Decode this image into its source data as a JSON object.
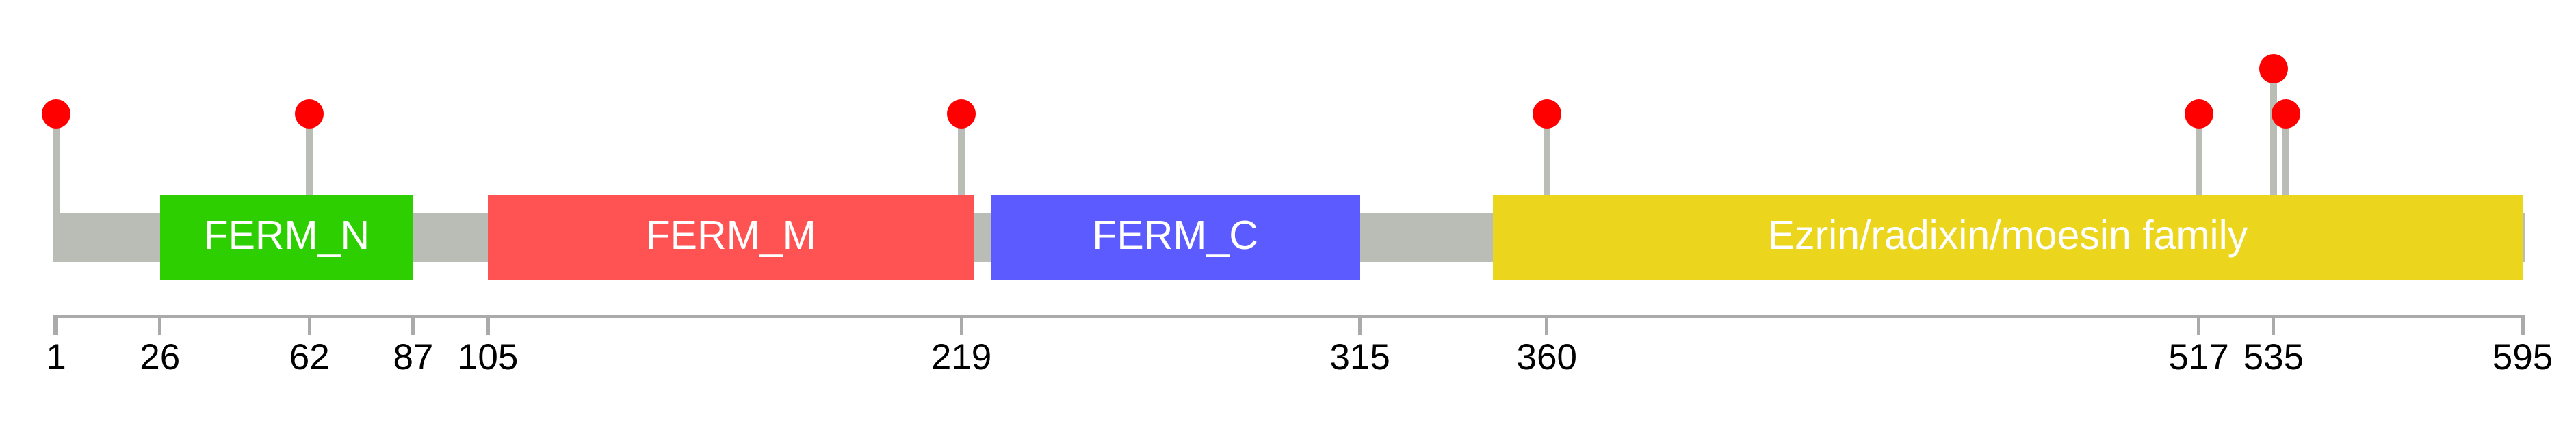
{
  "chart_data": {
    "type": "lollipop",
    "description": "Protein domain lollipop diagram",
    "protein": {
      "start": 1,
      "end": 595
    },
    "backbone_color": "#BABDB6",
    "stem_color": "#BABDB6",
    "lollipop_color": "#FF0000",
    "domain_label_color": "#FFFFFF",
    "domains": [
      {
        "label": "FERM_N",
        "start": 26,
        "end": 87,
        "color": "#2DCF00"
      },
      {
        "label": "FERM_M",
        "start": 105,
        "end": 222,
        "color": "#FF5353"
      },
      {
        "label": "FERM_C",
        "start": 226,
        "end": 315,
        "color": "#5B5BFF"
      },
      {
        "label": "Ezrin/radixin/moesin family",
        "start": 347,
        "end": 595,
        "color": "#EBD61D"
      }
    ],
    "lollipops": [
      {
        "position": 1,
        "tall": false
      },
      {
        "position": 62,
        "tall": false
      },
      {
        "position": 219,
        "tall": false
      },
      {
        "position": 360,
        "tall": false
      },
      {
        "position": 517,
        "tall": false
      },
      {
        "position": 535,
        "tall": true
      },
      {
        "position": 538,
        "tall": false
      }
    ],
    "axis": {
      "color": "#AAAAAA",
      "label_color": "#000000",
      "tick_labels": [
        "1",
        "26",
        "62",
        "87",
        "105",
        "219",
        "315",
        "360",
        "517",
        "535",
        "595"
      ],
      "tick_positions": [
        1,
        26,
        62,
        87,
        105,
        219,
        315,
        360,
        517,
        535,
        595
      ],
      "range": [
        1,
        595
      ]
    }
  }
}
